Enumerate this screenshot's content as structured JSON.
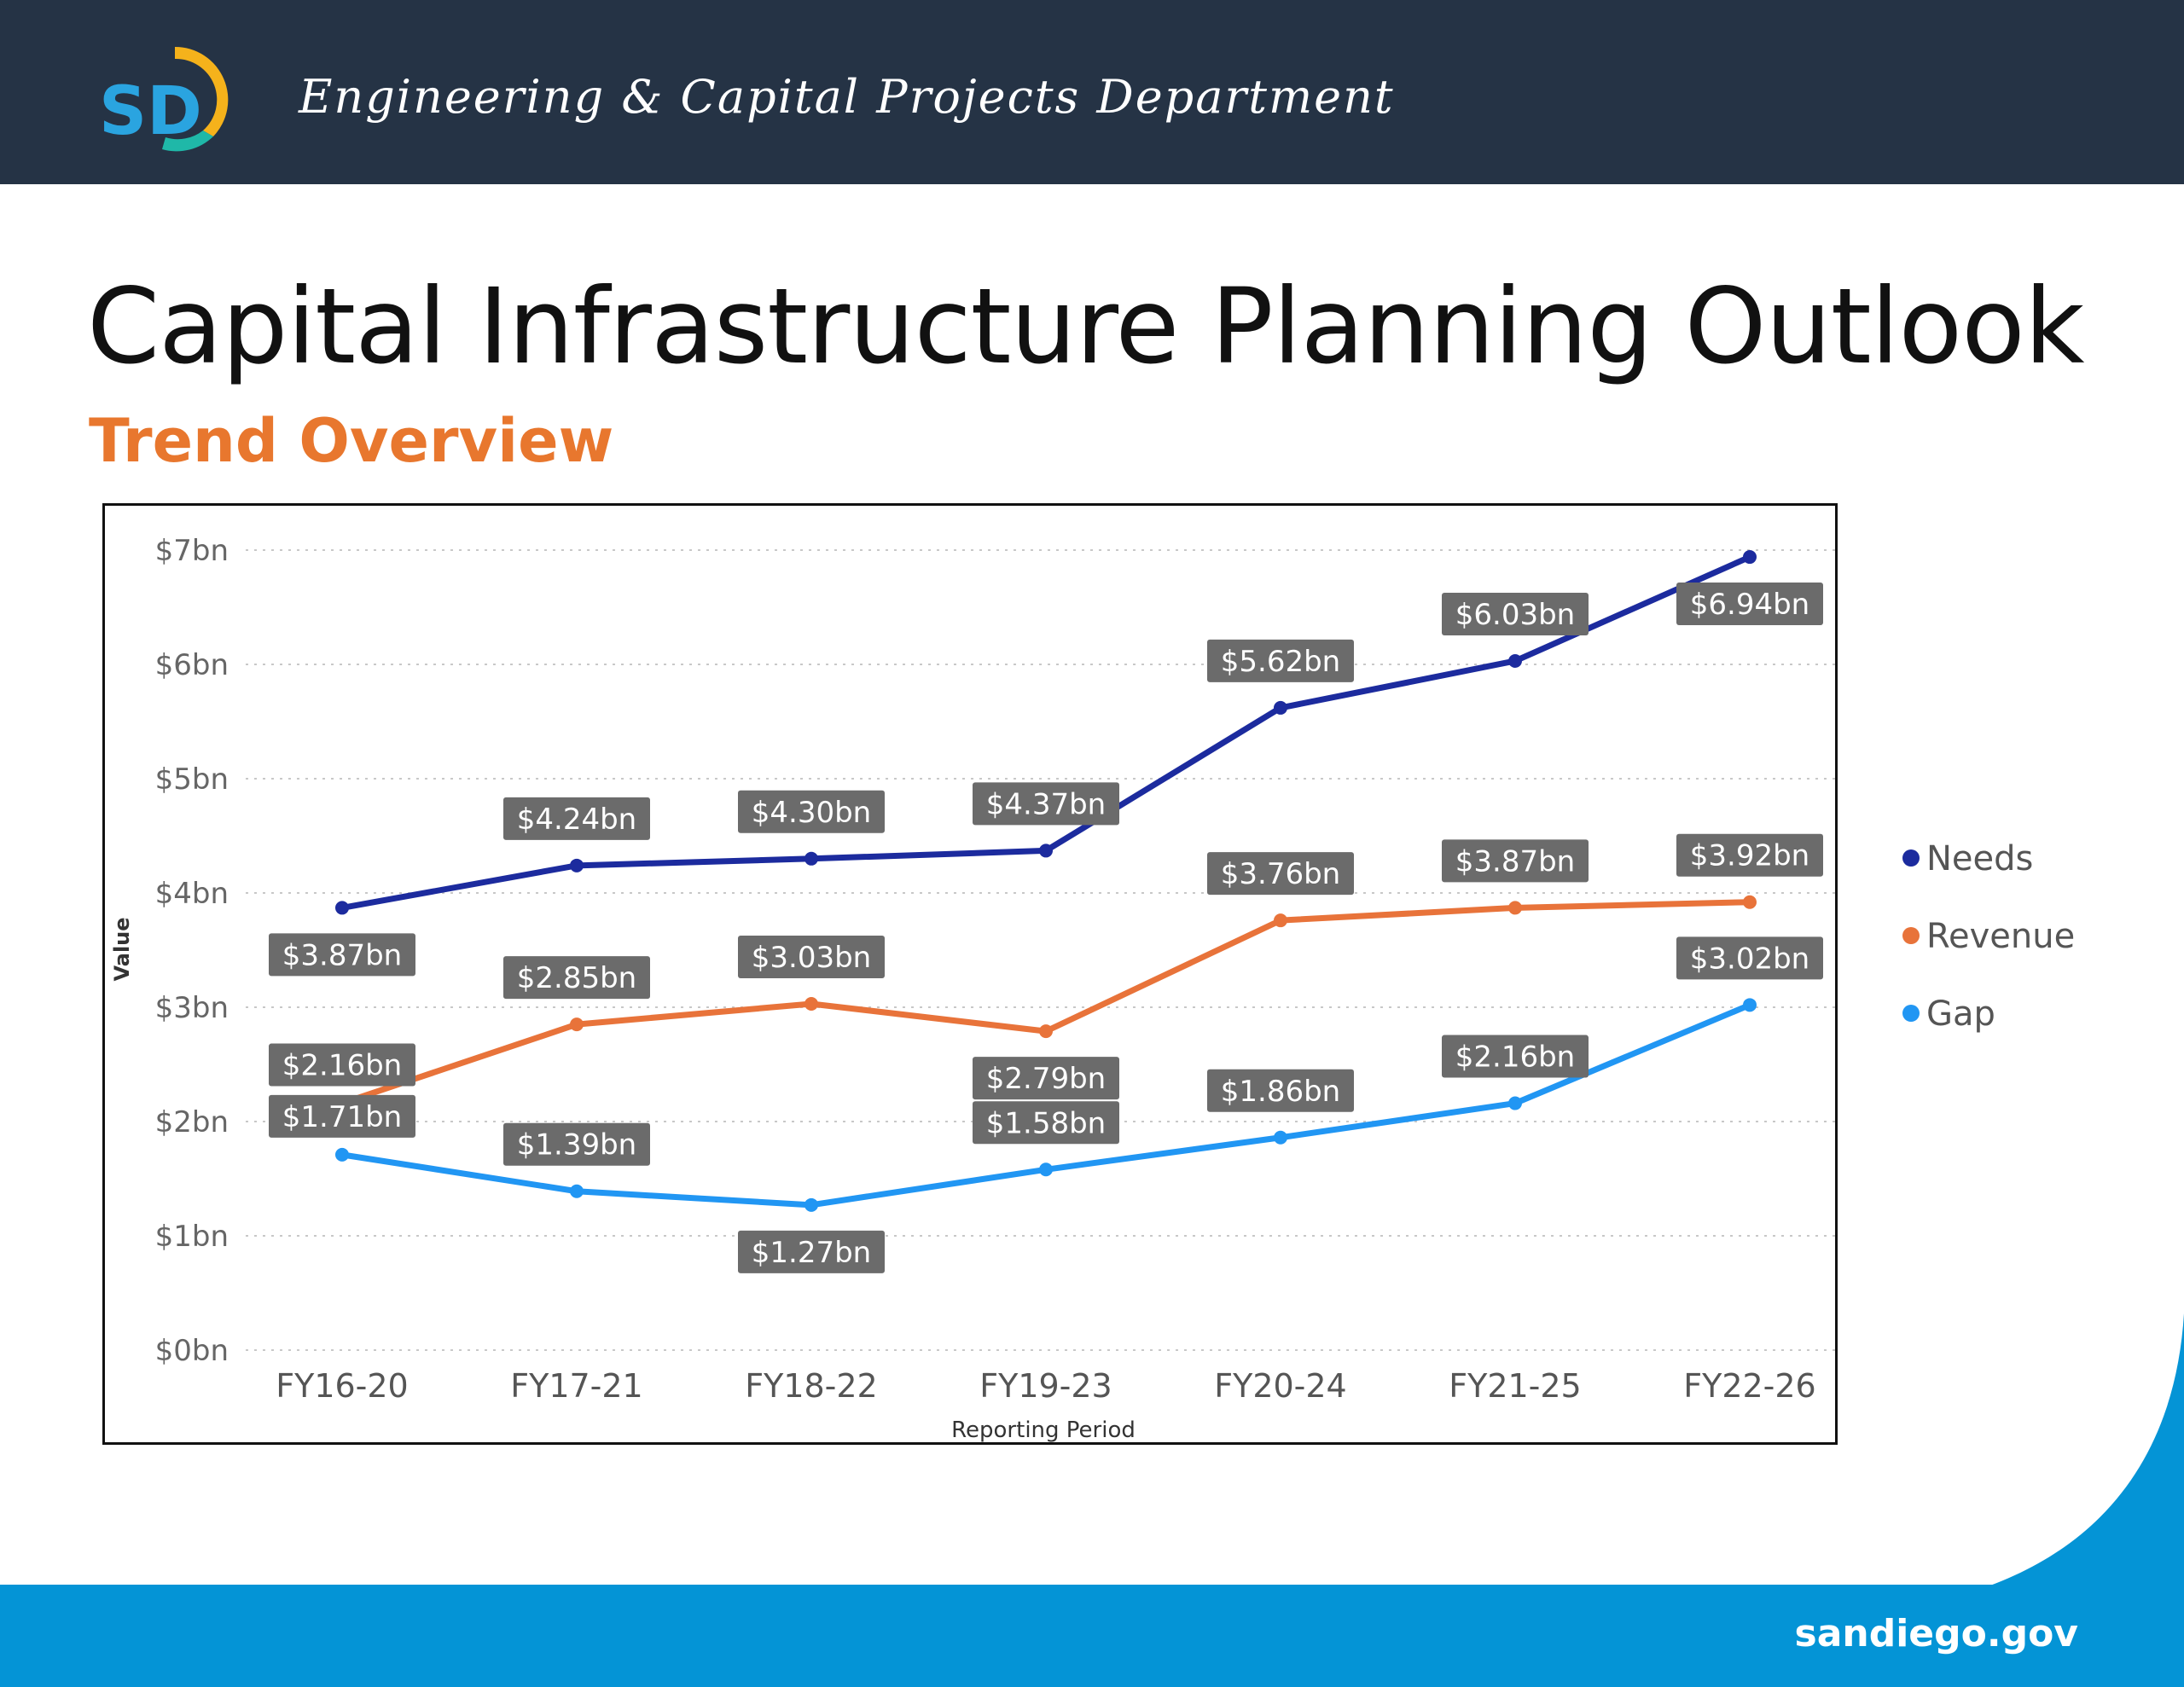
{
  "header": {
    "department": "Engineering & Capital Projects Department",
    "logo_text": "SD"
  },
  "slide": {
    "title": "Capital Infrastructure Planning Outlook",
    "subtitle": "Trend Overview"
  },
  "footer": {
    "site": "sandiego.gov"
  },
  "colors": {
    "header_bg": "#253345",
    "subtitle": "#E8772E",
    "footer_bg": "#0494D6",
    "needs": "#1C2B9E",
    "revenue": "#E8733A",
    "gap": "#2196F3",
    "label_bg": "#6B6B6B"
  },
  "chart_data": {
    "type": "line",
    "xlabel": "Reporting Period",
    "ylabel": "Value",
    "ylim": [
      0,
      7
    ],
    "yticks": [
      "$0bn",
      "$1bn",
      "$2bn",
      "$3bn",
      "$4bn",
      "$5bn",
      "$6bn",
      "$7bn"
    ],
    "grid": true,
    "legend_position": "right",
    "categories": [
      "FY16-20",
      "FY17-21",
      "FY18-22",
      "FY19-23",
      "FY20-24",
      "FY21-25",
      "FY22-26"
    ],
    "series": [
      {
        "name": "Needs",
        "color": "#1C2B9E",
        "values": [
          3.87,
          4.24,
          4.3,
          4.37,
          5.62,
          6.03,
          6.94
        ],
        "labels": [
          "$3.87bn",
          "$4.24bn",
          "$4.30bn",
          "$4.37bn",
          "$5.62bn",
          "$6.03bn",
          "$6.94bn"
        ]
      },
      {
        "name": "Revenue",
        "color": "#E8733A",
        "values": [
          2.16,
          2.85,
          3.03,
          2.79,
          3.76,
          3.87,
          3.92
        ],
        "labels": [
          "$2.16bn",
          "$2.85bn",
          "$3.03bn",
          "$2.79bn",
          "$3.76bn",
          "$3.87bn",
          "$3.92bn"
        ]
      },
      {
        "name": "Gap",
        "color": "#2196F3",
        "values": [
          1.71,
          1.39,
          1.27,
          1.58,
          1.86,
          2.16,
          3.02
        ],
        "labels": [
          "$1.71bn",
          "$1.39bn",
          "$1.27bn",
          "$1.58bn",
          "$1.86bn",
          "$2.16bn",
          "$3.02bn"
        ]
      }
    ]
  }
}
